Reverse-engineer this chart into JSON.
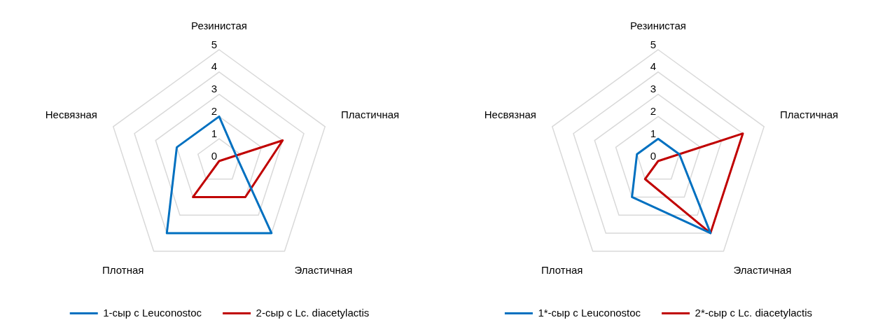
{
  "chart_data": [
    {
      "type": "radar",
      "categories": [
        "Резинистая",
        "Пластичная",
        "Эластичная",
        "Плотная",
        "Несвязная"
      ],
      "ylim": [
        0,
        5
      ],
      "yticks": [
        0,
        1,
        2,
        3,
        4,
        5
      ],
      "grid": true,
      "legend": "bottom",
      "marker": "none",
      "series": [
        {
          "name": "1-сыр с Leuconostoc",
          "color": "#0070c0",
          "values": [
            2,
            0.8,
            4,
            4,
            2
          ]
        },
        {
          "name": "2-сыр с Lc. diacetylactis",
          "color": "#c00000",
          "values": [
            0,
            3,
            2,
            2,
            0
          ]
        }
      ]
    },
    {
      "type": "radar",
      "categories": [
        "Резинистая",
        "Пластичная",
        "Эластичная",
        "Плотная",
        "Несвязная"
      ],
      "ylim": [
        0,
        5
      ],
      "yticks": [
        0,
        1,
        2,
        3,
        4,
        5
      ],
      "grid": true,
      "legend": "bottom",
      "marker": "none",
      "series": [
        {
          "name": "1*-сыр с Leuconostoc",
          "color": "#0070c0",
          "values": [
            1,
            1,
            4,
            2,
            1
          ]
        },
        {
          "name": "2*-сыр с Lc. diacetylactis",
          "color": "#c00000",
          "values": [
            0,
            4,
            4,
            1,
            0
          ]
        }
      ]
    }
  ]
}
